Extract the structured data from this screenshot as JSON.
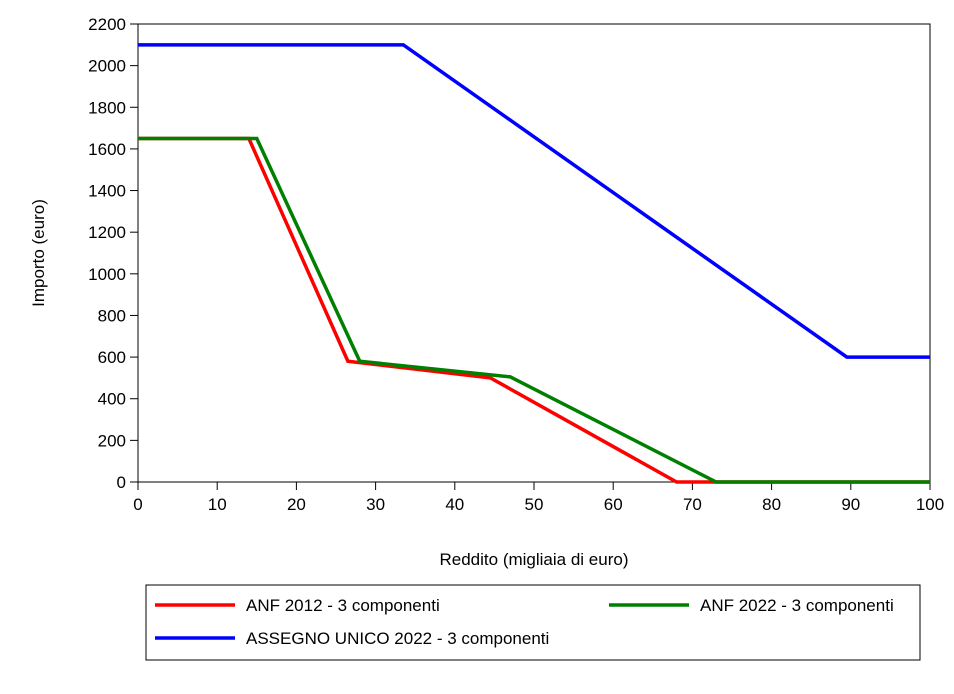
{
  "chart_data": {
    "type": "line",
    "title": "",
    "xlabel": "Reddito (migliaia di euro)",
    "ylabel": "Importo (euro)",
    "xlim": [
      0,
      100
    ],
    "ylim": [
      0,
      2200
    ],
    "xticks": [
      0,
      10,
      20,
      30,
      40,
      50,
      60,
      70,
      80,
      90,
      100
    ],
    "yticks": [
      0,
      200,
      400,
      600,
      800,
      1000,
      1200,
      1400,
      1600,
      1800,
      2000,
      2200
    ],
    "grid": false,
    "legend_position": "bottom",
    "series": [
      {
        "name": "ANF 2012 - 3 componenti",
        "color": "#ff0000",
        "x": [
          0,
          14,
          26.5,
          44.5,
          68,
          72,
          100
        ],
        "y": [
          1650,
          1650,
          580,
          500,
          0,
          0,
          0
        ]
      },
      {
        "name": "ANF 2022 - 3 componenti",
        "color": "#008000",
        "x": [
          0,
          15,
          28,
          47,
          73,
          100
        ],
        "y": [
          1650,
          1650,
          580,
          505,
          0,
          0
        ]
      },
      {
        "name": "ASSEGNO UNICO 2022 - 3 componenti",
        "color": "#0000ff",
        "x": [
          0,
          33.5,
          89.5,
          100
        ],
        "y": [
          2100,
          2100,
          600,
          600
        ]
      }
    ]
  }
}
